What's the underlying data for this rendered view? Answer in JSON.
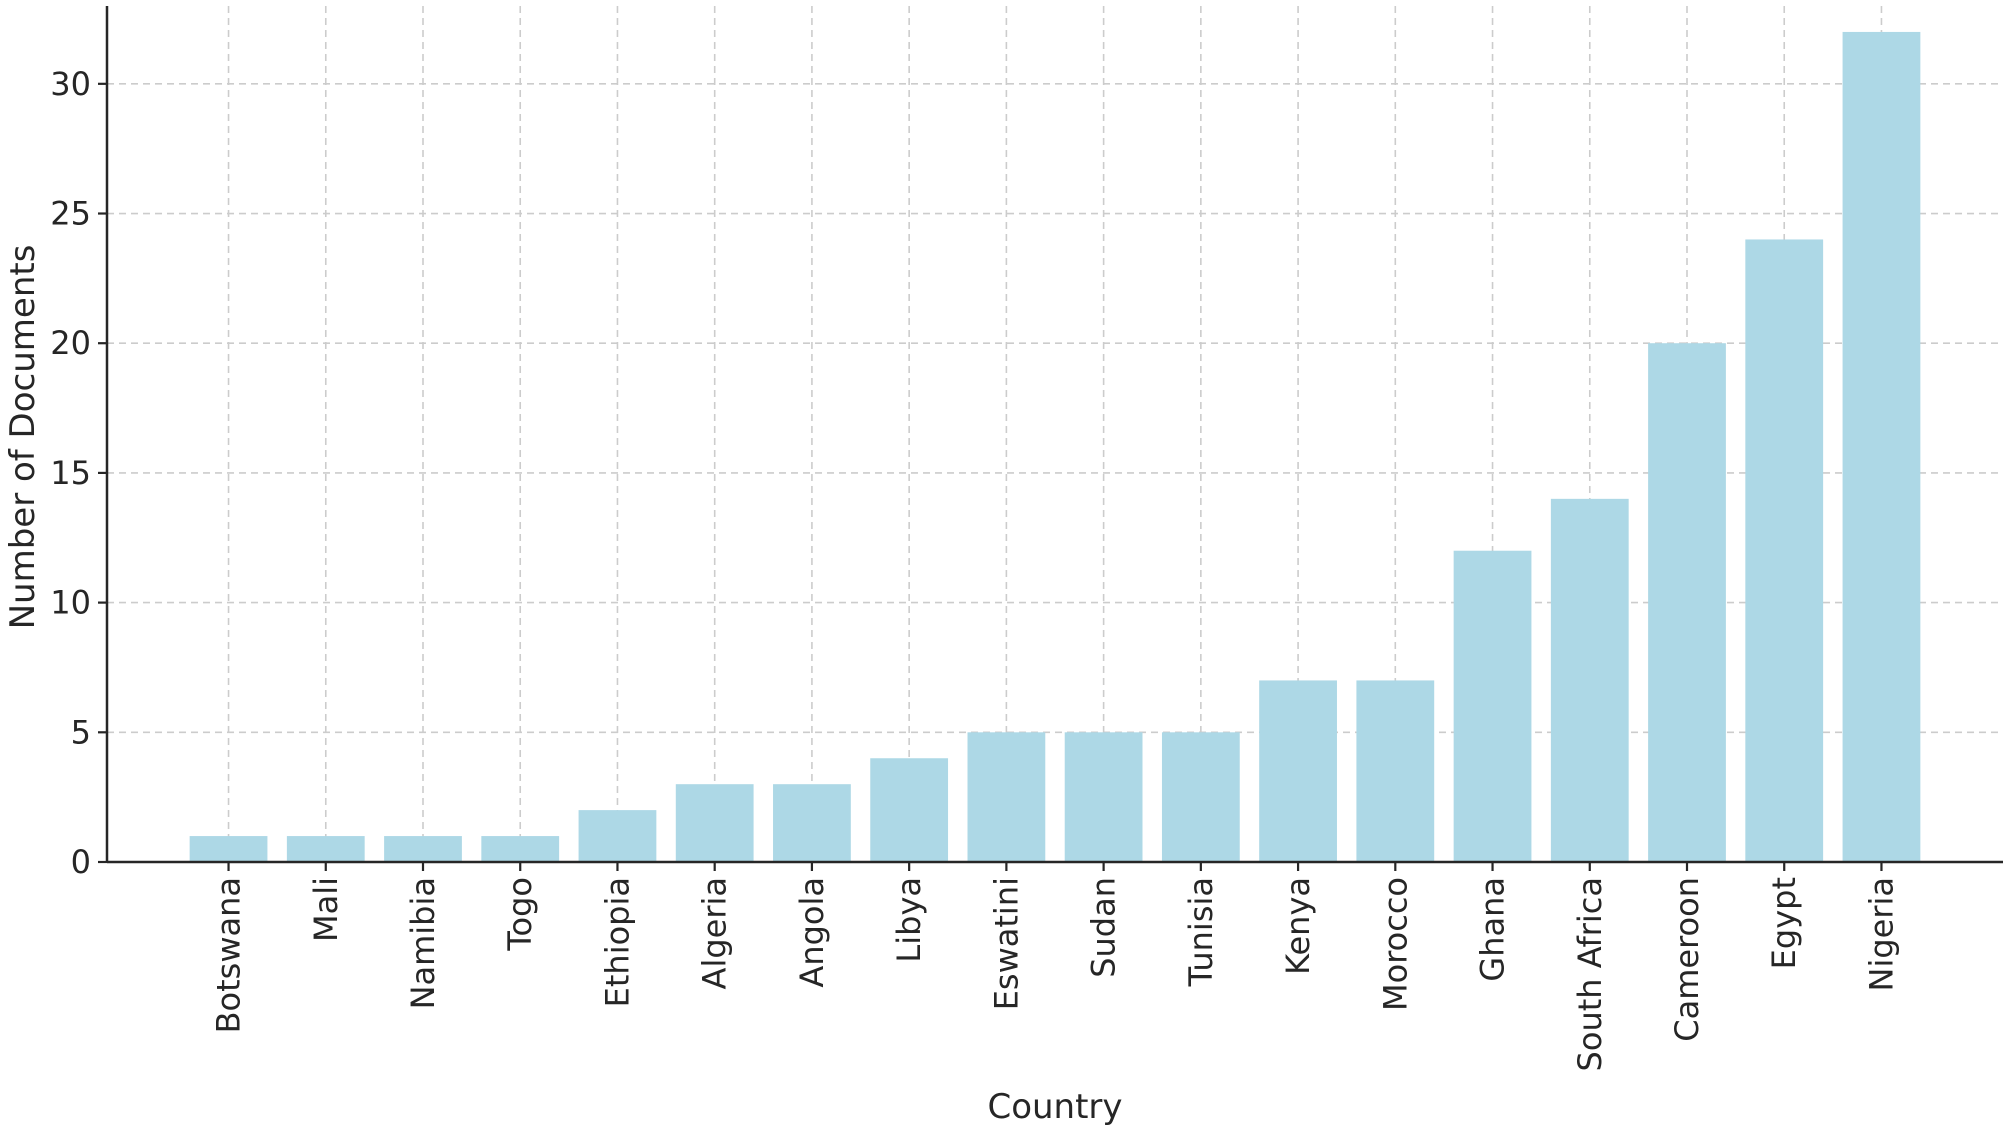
{
  "chart_data": {
    "type": "bar",
    "title": "",
    "xlabel": "Country",
    "ylabel": "Number of Documents",
    "categories": [
      "Botswana",
      "Mali",
      "Namibia",
      "Togo",
      "Ethiopia",
      "Algeria",
      "Angola",
      "Libya",
      "Eswatini",
      "Sudan",
      "Tunisia",
      "Kenya",
      "Morocco",
      "Ghana",
      "South Africa",
      "Cameroon",
      "Egypt",
      "Nigeria"
    ],
    "values": [
      1,
      1,
      1,
      1,
      2,
      3,
      3,
      4,
      5,
      5,
      5,
      7,
      7,
      12,
      14,
      20,
      24,
      32
    ],
    "ylim": [
      0,
      33
    ],
    "yticks": [
      0,
      5,
      10,
      15,
      20,
      25,
      30
    ],
    "grid": true,
    "bar_color": "#add8e6"
  }
}
